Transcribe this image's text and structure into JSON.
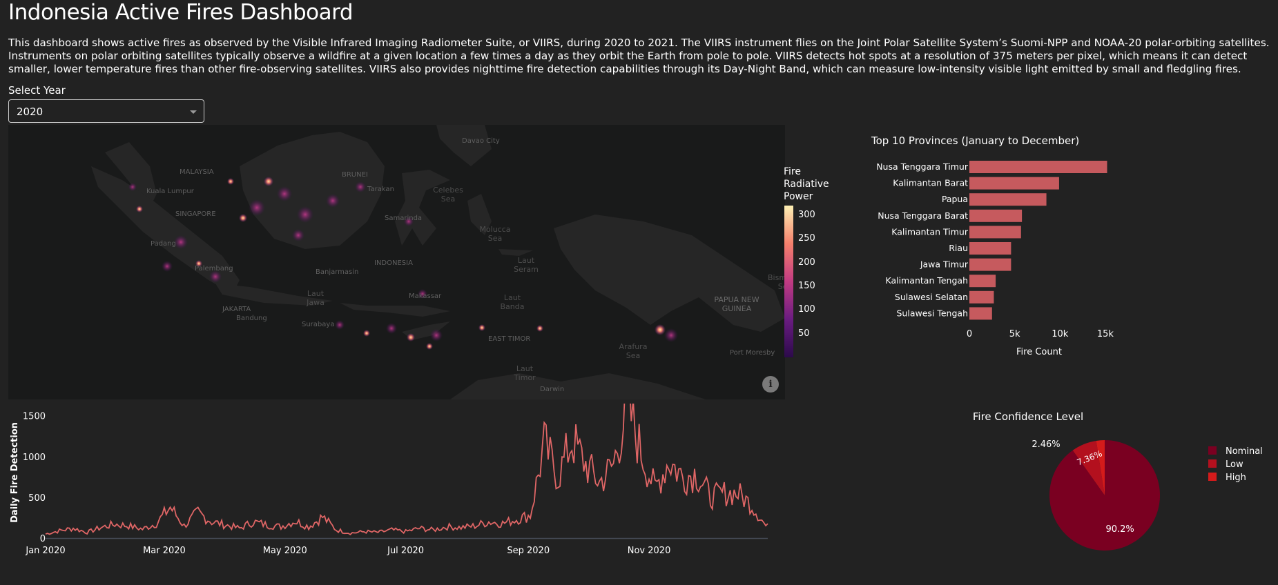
{
  "page": {
    "title": "Indonesia Active Fires Dashboard",
    "description": "This dashboard shows active fires as observed by the Visible Infrared Imaging Radiometer Suite, or VIIRS, during 2020 to 2021. The VIIRS instrument flies on the Joint Polar Satellite System’s Suomi-NPP and NOAA-20 polar-orbiting satellites. Instruments on polar orbiting satellites typically observe a wildfire at a given location a few times a day as they orbit the Earth from pole to pole. VIIRS detects hot spots at a resolution of 375 meters per pixel, which means it can detect smaller, lower temperature fires than other fire-observing satellites. VIIRS also provides nighttime fire detection capabilities through its Day-Night Band, which can measure low-intensity visible light emitted by small and fledgling fires."
  },
  "year_select": {
    "label": "Select Year",
    "value": "2020"
  },
  "map": {
    "place_labels": [
      "MALAYSIA",
      "BRUNEI",
      "Davao City",
      "Kuala Lumpur",
      "SINGAPORE",
      "Padang",
      "Palembang",
      "JAKARTA",
      "Bandung",
      "Surabaya",
      "Banjarmasin",
      "INDONESIA",
      "Makassar",
      "Samarinda",
      "Tarakan",
      "Port Moresby",
      "Darwin",
      "PAPUA NEW GUINEA",
      "EAST TIMOR"
    ],
    "sea_labels": [
      "Laut Jawa",
      "Laut Banda",
      "Laut Seram",
      "Laut Timor",
      "Arafura Sea",
      "Celebes Sea",
      "Molucca Sea",
      "Bismarck Sea"
    ],
    "colorbar": {
      "title": "Fire Radiative Power",
      "ticks": [
        "300",
        "250",
        "200",
        "150",
        "100",
        "50"
      ],
      "range": [
        0,
        320
      ]
    }
  },
  "chart_data": [
    {
      "type": "bar",
      "orientation": "horizontal",
      "title": "Top 10 Provinces (January to December)",
      "xlabel": "Fire Count",
      "ylabel": "",
      "categories": [
        "Nusa Tenggara Timur",
        "Kalimantan Barat",
        "Papua",
        "Nusa Tenggara Barat",
        "Kalimantan Timur",
        "Riau",
        "Jawa Timur",
        "Kalimantan Tengah",
        "Sulawesi Selatan",
        "Sulawesi Tengah"
      ],
      "values": [
        15200,
        9900,
        8500,
        5800,
        5700,
        4600,
        4600,
        2900,
        2700,
        2500
      ],
      "xlim": [
        0,
        16000
      ],
      "xticks": [
        {
          "value": 0,
          "label": "0"
        },
        {
          "value": 5000,
          "label": "5k"
        },
        {
          "value": 10000,
          "label": "10k"
        },
        {
          "value": 15000,
          "label": "15k"
        }
      ],
      "color": "#c65a5e"
    },
    {
      "type": "line",
      "title": "",
      "xlabel": "",
      "ylabel": "Daily Fire Detection",
      "x_start": "2020-01-01",
      "ylim": [
        0,
        1650
      ],
      "yticks": [
        0,
        500,
        1000,
        1500
      ],
      "xticks": [
        "Jan 2020",
        "Mar 2020",
        "May 2020",
        "Jul 2020",
        "Sep 2020",
        "Nov 2020"
      ],
      "xtick_dates": [
        "2020-01-01",
        "2020-03-01",
        "2020-05-01",
        "2020-07-01",
        "2020-09-01",
        "2020-11-01"
      ],
      "x_end": "2020-12-31",
      "color": "#e06666",
      "weekly_y": [
        50,
        90,
        120,
        70,
        130,
        170,
        150,
        110,
        180,
        380,
        150,
        310,
        200,
        160,
        120,
        200,
        160,
        140,
        210,
        140,
        260,
        100,
        60,
        80,
        70,
        100,
        80,
        120,
        100,
        140,
        130,
        150,
        200,
        180,
        230,
        280,
        1150,
        750,
        1200,
        900,
        680,
        900,
        1650,
        1050,
        600,
        950,
        750,
        800,
        500,
        550,
        550,
        400,
        150,
        80,
        60,
        70,
        40,
        30,
        40,
        30,
        20
      ]
    },
    {
      "type": "pie",
      "title": "Fire Confidence Level",
      "labels": [
        "Nominal",
        "Low",
        "High"
      ],
      "values": [
        90.2,
        7.36,
        2.46
      ],
      "slice_labels": [
        "90.2%",
        "7.36%",
        "2.46%"
      ],
      "colors": [
        "#7a0021",
        "#b3101e",
        "#d41b1b"
      ],
      "legend_position": "right"
    }
  ]
}
